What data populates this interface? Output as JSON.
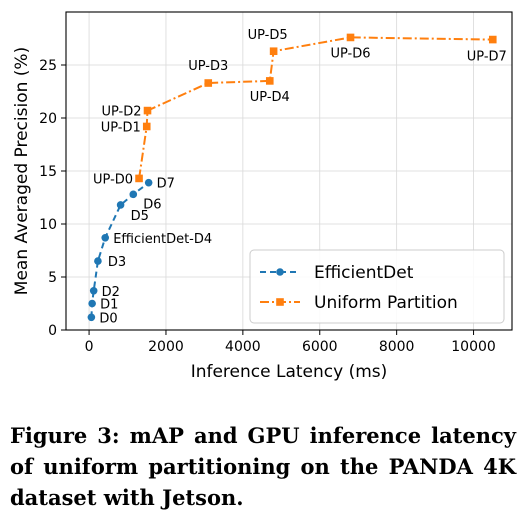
{
  "chart_data": {
    "type": "line",
    "xlabel": "Inference Latency (ms)",
    "ylabel": "Mean Averaged Precision (%)",
    "xlim": [
      -600,
      11000
    ],
    "ylim": [
      0,
      30
    ],
    "xticks": [
      0,
      2000,
      4000,
      6000,
      8000,
      10000
    ],
    "yticks": [
      0,
      5,
      10,
      15,
      20,
      25
    ],
    "grid": true,
    "legend": "lower-right",
    "series": [
      {
        "name": "EfficientDet",
        "color": "#1f77b4",
        "style": "dashed",
        "marker": "circle",
        "points": [
          {
            "x": 60,
            "y": 1.2,
            "label": "D0"
          },
          {
            "x": 80,
            "y": 2.5,
            "label": "D1"
          },
          {
            "x": 120,
            "y": 3.7,
            "label": "D2"
          },
          {
            "x": 230,
            "y": 6.5,
            "label": "D3"
          },
          {
            "x": 420,
            "y": 8.7,
            "label": "EfficientDet-D4"
          },
          {
            "x": 820,
            "y": 11.8,
            "label": "D5"
          },
          {
            "x": 1150,
            "y": 12.8,
            "label": "D6"
          },
          {
            "x": 1550,
            "y": 13.9,
            "label": "D7"
          }
        ]
      },
      {
        "name": "Uniform Partition",
        "color": "#ff7f0e",
        "style": "dashdot",
        "marker": "square",
        "points": [
          {
            "x": 1300,
            "y": 14.3,
            "label": "UP-D0"
          },
          {
            "x": 1500,
            "y": 19.2,
            "label": "UP-D1"
          },
          {
            "x": 1520,
            "y": 20.7,
            "label": "UP-D2"
          },
          {
            "x": 3100,
            "y": 23.3,
            "label": "UP-D3"
          },
          {
            "x": 4700,
            "y": 23.5,
            "label": "UP-D4"
          },
          {
            "x": 4800,
            "y": 26.3,
            "label": "UP-D5"
          },
          {
            "x": 6800,
            "y": 27.6,
            "label": "UP-D6"
          },
          {
            "x": 10500,
            "y": 27.4,
            "label": "UP-D7"
          }
        ]
      }
    ]
  },
  "caption": "Figure 3: mAP and GPU inference latency of uniform partitioning on the PANDA 4K dataset with Jetson."
}
